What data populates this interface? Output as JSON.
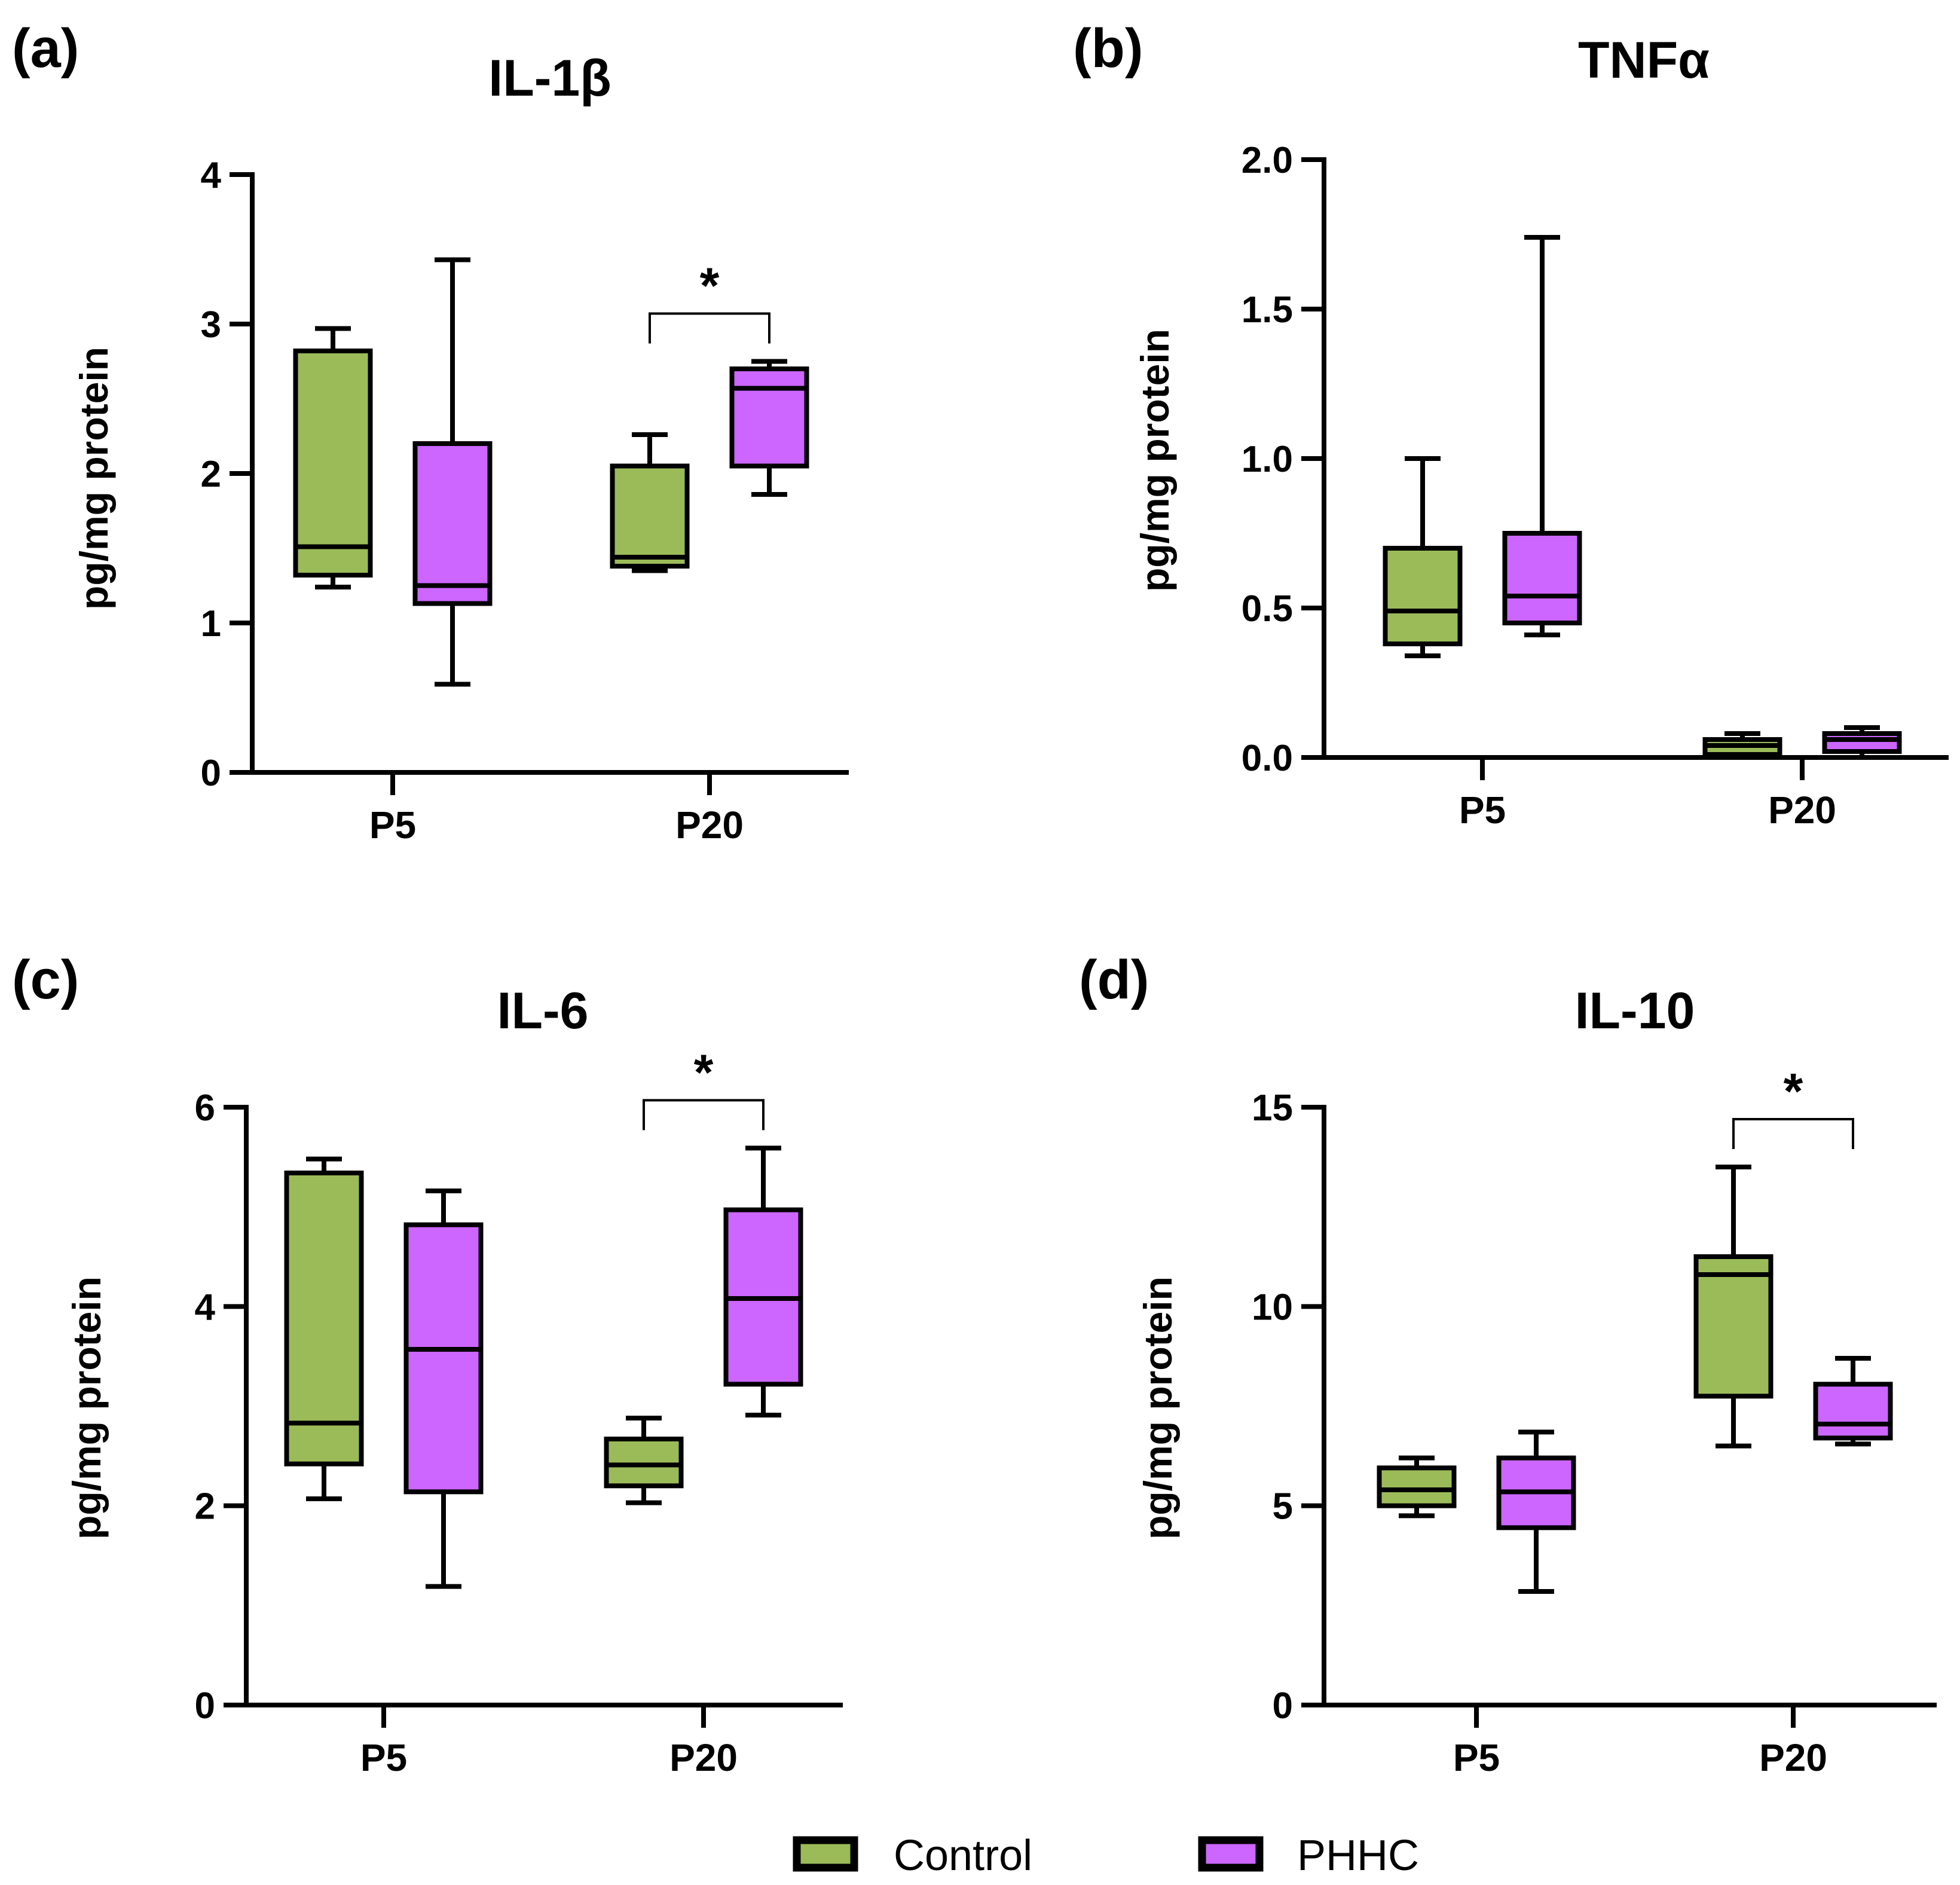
{
  "figure": {
    "legend": [
      {
        "name": "Control",
        "color": "#9BBB59"
      },
      {
        "name": "PHHC",
        "color": "#CC66FF"
      }
    ]
  },
  "chart_data": [
    {
      "panel": "(a)",
      "type": "box",
      "title": "IL-1β",
      "ylabel": "pg/mg protein",
      "ylim": [
        0,
        4
      ],
      "yticks": [
        "0",
        "1",
        "2",
        "3",
        "4"
      ],
      "categories": [
        "P5",
        "P20"
      ],
      "series": [
        {
          "name": "Control",
          "boxes": [
            {
              "min": 1.24,
              "q1": 1.32,
              "median": 1.51,
              "q3": 2.82,
              "max": 2.97
            },
            {
              "min": 1.35,
              "q1": 1.38,
              "median": 1.44,
              "q3": 2.05,
              "max": 2.26
            }
          ]
        },
        {
          "name": "PHHC",
          "boxes": [
            {
              "min": 0.59,
              "q1": 1.13,
              "median": 1.25,
              "q3": 2.2,
              "max": 3.43
            },
            {
              "min": 1.86,
              "q1": 2.05,
              "median": 2.57,
              "q3": 2.7,
              "max": 2.75
            }
          ]
        }
      ],
      "significance": [
        {
          "category": "P20",
          "label": "*"
        }
      ]
    },
    {
      "panel": "(b)",
      "type": "box",
      "title": "TNFα",
      "ylabel": "pg/mg protein",
      "ylim": [
        0,
        2
      ],
      "yticks": [
        "0.0",
        "0.5",
        "1.0",
        "1.5",
        "2.0"
      ],
      "categories": [
        "P5",
        "P20"
      ],
      "series": [
        {
          "name": "Control",
          "boxes": [
            {
              "min": 0.34,
              "q1": 0.38,
              "median": 0.49,
              "q3": 0.7,
              "max": 1.0
            },
            {
              "min": 0.0,
              "q1": 0.01,
              "median": 0.04,
              "q3": 0.06,
              "max": 0.08
            }
          ]
        },
        {
          "name": "PHHC",
          "boxes": [
            {
              "min": 0.41,
              "q1": 0.45,
              "median": 0.54,
              "q3": 0.75,
              "max": 1.74
            },
            {
              "min": 0.0,
              "q1": 0.02,
              "median": 0.06,
              "q3": 0.08,
              "max": 0.1
            }
          ]
        }
      ],
      "significance": []
    },
    {
      "panel": "(c)",
      "type": "box",
      "title": "IL-6",
      "ylabel": "pg/mg protein",
      "ylim": [
        0,
        6
      ],
      "yticks": [
        "0",
        "2",
        "4",
        "6"
      ],
      "categories": [
        "P5",
        "P20"
      ],
      "series": [
        {
          "name": "Control",
          "boxes": [
            {
              "min": 2.07,
              "q1": 2.42,
              "median": 2.83,
              "q3": 5.34,
              "max": 5.48
            },
            {
              "min": 2.03,
              "q1": 2.2,
              "median": 2.41,
              "q3": 2.67,
              "max": 2.88
            }
          ]
        },
        {
          "name": "PHHC",
          "boxes": [
            {
              "min": 1.19,
              "q1": 2.14,
              "median": 3.57,
              "q3": 4.82,
              "max": 5.16
            },
            {
              "min": 2.91,
              "q1": 3.22,
              "median": 4.08,
              "q3": 4.97,
              "max": 5.59
            }
          ]
        }
      ],
      "significance": [
        {
          "category": "P20",
          "label": "*"
        }
      ]
    },
    {
      "panel": "(d)",
      "type": "box",
      "title": "IL-10",
      "ylabel": "pg/mg protein",
      "ylim": [
        0,
        15
      ],
      "yticks": [
        "0",
        "5",
        "10",
        "15"
      ],
      "categories": [
        "P5",
        "P20"
      ],
      "series": [
        {
          "name": "Control",
          "boxes": [
            {
              "min": 4.75,
              "q1": 5.0,
              "median": 5.4,
              "q3": 5.95,
              "max": 6.2
            },
            {
              "min": 6.5,
              "q1": 7.75,
              "median": 10.8,
              "q3": 11.25,
              "max": 13.5
            }
          ]
        },
        {
          "name": "PHHC",
          "boxes": [
            {
              "min": 2.85,
              "q1": 4.45,
              "median": 5.35,
              "q3": 6.2,
              "max": 6.85
            },
            {
              "min": 6.55,
              "q1": 6.7,
              "median": 7.05,
              "q3": 8.05,
              "max": 8.7
            }
          ]
        }
      ],
      "significance": [
        {
          "category": "P20",
          "label": "*"
        }
      ]
    }
  ]
}
